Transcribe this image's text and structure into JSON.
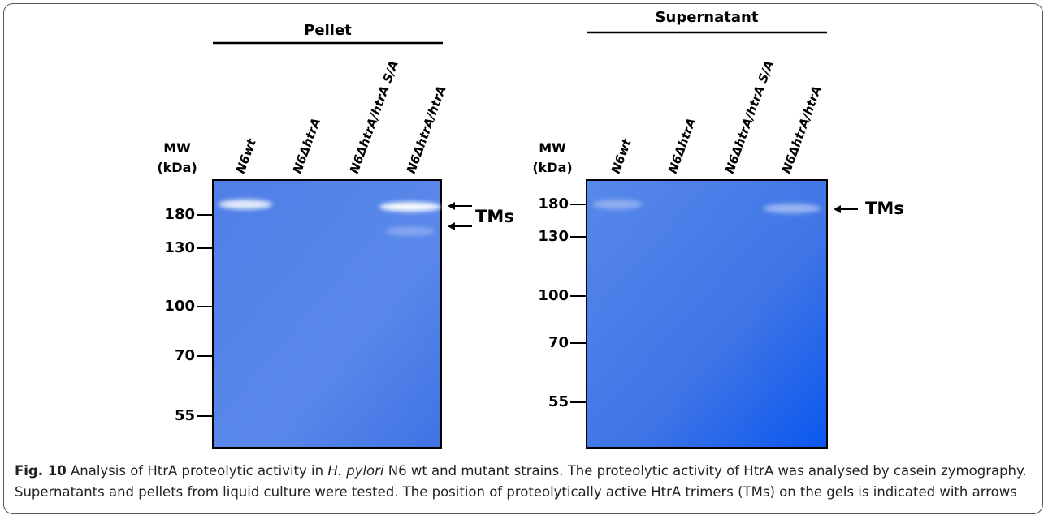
{
  "gels": [
    {
      "title": "Pellet",
      "mw_label": "MW",
      "mw_unit": "(kDa)",
      "lanes": [
        "N6wt",
        "N6ΔhtrA",
        "N6ΔhtrA/htrA S/A",
        "N6ΔhtrA/htrA"
      ],
      "markers": [
        "180",
        "130",
        "100",
        "70",
        "55"
      ],
      "annotation": "TMs"
    },
    {
      "title": "Supernatant",
      "mw_label": "MW",
      "mw_unit": "(kDa)",
      "lanes": [
        "N6wt",
        "N6ΔhtrA",
        "N6ΔhtrA/htrA S/A",
        "N6ΔhtrA/htrA"
      ],
      "markers": [
        "180",
        "130",
        "100",
        "70",
        "55"
      ],
      "annotation": "TMs"
    }
  ],
  "caption": {
    "label": "Fig. 10",
    "text_before": "Analysis of HtrA proteolytic activity in",
    "italic": "H. pylori",
    "text_after": "N6 wt and mutant strains. The proteolytic activity of HtrA was analysed by casein zymography. Supernatants and pellets from liquid culture were tested. The position of proteolytically active HtrA trimers (TMs) on the gels is indicated with arrows"
  }
}
